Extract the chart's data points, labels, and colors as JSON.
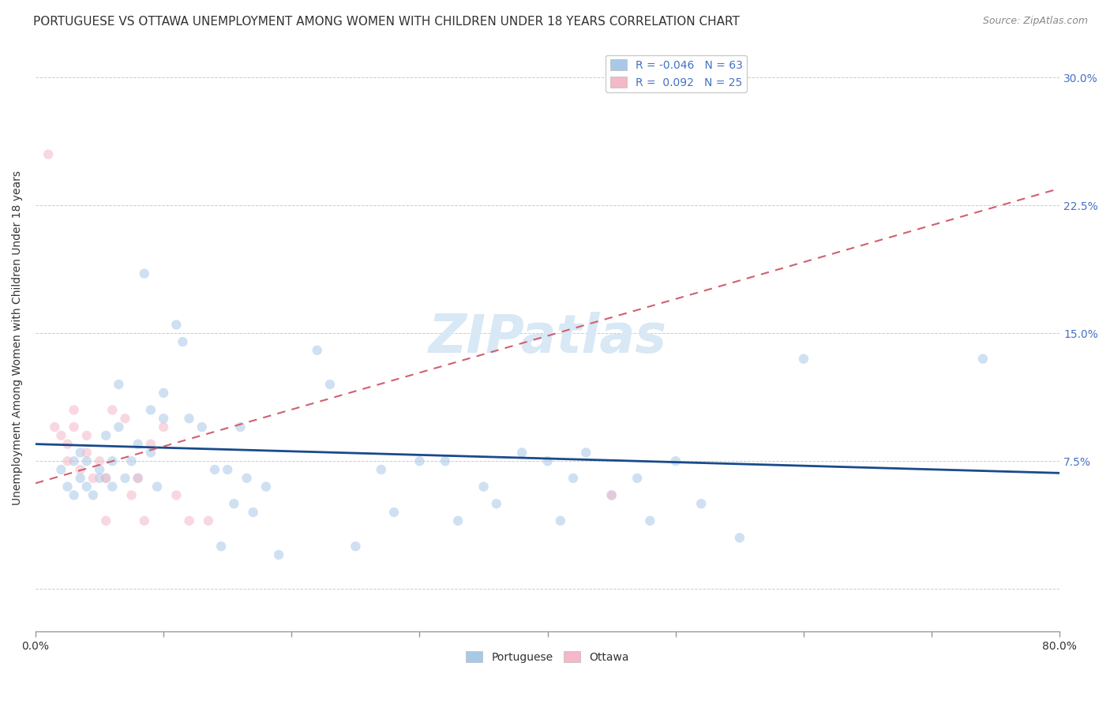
{
  "title": "PORTUGUESE VS OTTAWA UNEMPLOYMENT AMONG WOMEN WITH CHILDREN UNDER 18 YEARS CORRELATION CHART",
  "source": "Source: ZipAtlas.com",
  "ylabel": "Unemployment Among Women with Children Under 18 years",
  "xlim": [
    0,
    0.8
  ],
  "ylim": [
    -0.025,
    0.32
  ],
  "xticks": [
    0.0,
    0.1,
    0.2,
    0.3,
    0.4,
    0.5,
    0.6,
    0.7,
    0.8
  ],
  "xticklabels": [
    "0.0%",
    "",
    "",
    "",
    "",
    "",
    "",
    "",
    "80.0%"
  ],
  "yticks": [
    0.0,
    0.075,
    0.15,
    0.225,
    0.3
  ],
  "yticklabels": [
    "",
    "7.5%",
    "15.0%",
    "22.5%",
    "30.0%"
  ],
  "blue_R": "-0.046",
  "blue_N": "63",
  "pink_R": "0.092",
  "pink_N": "25",
  "blue_color": "#a8c8e8",
  "pink_color": "#f4b8c8",
  "blue_line_color": "#1a4a8a",
  "pink_line_color": "#d06070",
  "watermark_text": "ZIPatlas",
  "blue_points_x": [
    0.02,
    0.025,
    0.03,
    0.03,
    0.035,
    0.035,
    0.04,
    0.04,
    0.045,
    0.05,
    0.05,
    0.055,
    0.055,
    0.06,
    0.06,
    0.065,
    0.065,
    0.07,
    0.075,
    0.08,
    0.08,
    0.085,
    0.09,
    0.09,
    0.095,
    0.1,
    0.1,
    0.11,
    0.115,
    0.12,
    0.13,
    0.14,
    0.145,
    0.15,
    0.155,
    0.16,
    0.165,
    0.17,
    0.18,
    0.19,
    0.22,
    0.23,
    0.25,
    0.27,
    0.28,
    0.3,
    0.32,
    0.33,
    0.35,
    0.36,
    0.38,
    0.4,
    0.41,
    0.42,
    0.43,
    0.45,
    0.47,
    0.48,
    0.5,
    0.52,
    0.55,
    0.6,
    0.74
  ],
  "blue_points_y": [
    0.07,
    0.06,
    0.075,
    0.055,
    0.065,
    0.08,
    0.06,
    0.075,
    0.055,
    0.07,
    0.065,
    0.09,
    0.065,
    0.06,
    0.075,
    0.12,
    0.095,
    0.065,
    0.075,
    0.065,
    0.085,
    0.185,
    0.08,
    0.105,
    0.06,
    0.1,
    0.115,
    0.155,
    0.145,
    0.1,
    0.095,
    0.07,
    0.025,
    0.07,
    0.05,
    0.095,
    0.065,
    0.045,
    0.06,
    0.02,
    0.14,
    0.12,
    0.025,
    0.07,
    0.045,
    0.075,
    0.075,
    0.04,
    0.06,
    0.05,
    0.08,
    0.075,
    0.04,
    0.065,
    0.08,
    0.055,
    0.065,
    0.04,
    0.075,
    0.05,
    0.03,
    0.135,
    0.135
  ],
  "pink_points_x": [
    0.01,
    0.015,
    0.02,
    0.025,
    0.025,
    0.03,
    0.03,
    0.035,
    0.04,
    0.04,
    0.045,
    0.05,
    0.055,
    0.055,
    0.06,
    0.07,
    0.075,
    0.08,
    0.085,
    0.09,
    0.1,
    0.11,
    0.12,
    0.135,
    0.45
  ],
  "pink_points_y": [
    0.255,
    0.095,
    0.09,
    0.085,
    0.075,
    0.105,
    0.095,
    0.07,
    0.09,
    0.08,
    0.065,
    0.075,
    0.065,
    0.04,
    0.105,
    0.1,
    0.055,
    0.065,
    0.04,
    0.085,
    0.095,
    0.055,
    0.04,
    0.04,
    0.055
  ],
  "blue_trendline_x": [
    0.0,
    0.8
  ],
  "blue_trendline_y": [
    0.085,
    0.068
  ],
  "pink_trendline_x": [
    0.0,
    0.8
  ],
  "pink_trendline_y": [
    0.062,
    0.235
  ],
  "grid_color": "#cccccc",
  "background_color": "#ffffff",
  "title_fontsize": 11,
  "source_fontsize": 9,
  "ylabel_fontsize": 10,
  "tick_fontsize": 10,
  "legend_fontsize": 10,
  "watermark_fontsize": 48,
  "watermark_color": "#d8e8f5",
  "marker_size": 80,
  "marker_alpha": 0.55
}
